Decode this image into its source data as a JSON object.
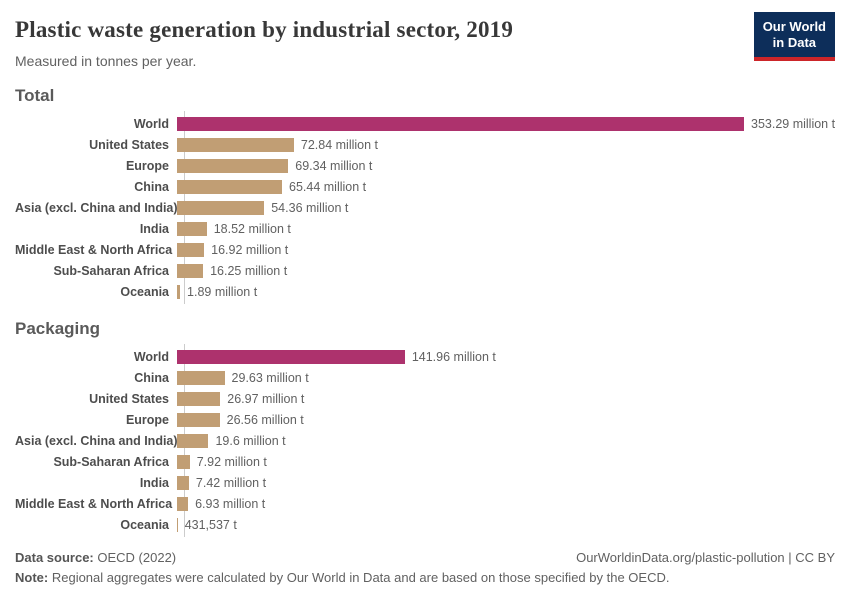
{
  "header": {
    "title": "Plastic waste generation by industrial sector, 2019",
    "subtitle": "Measured in tonnes per year."
  },
  "logo": {
    "line1": "Our World",
    "line2": "in Data",
    "background": "#0D2E5A",
    "underline": "#CC2529"
  },
  "colors": {
    "world_bar": "#AD326D",
    "region_bar": "#C19E74",
    "axis_line": "#CCCCCC"
  },
  "chart_data": [
    {
      "type": "bar",
      "orientation": "horizontal",
      "section_title": "Total",
      "unit": "tonnes per year",
      "xlim": [
        0,
        353.29
      ],
      "grid": false,
      "legend": "none",
      "categories": [
        "World",
        "United States",
        "Europe",
        "China",
        "Asia (excl. China and India)",
        "India",
        "Middle East & North Africa",
        "Sub-Saharan Africa",
        "Oceania"
      ],
      "values": [
        353.29,
        72.84,
        69.34,
        65.44,
        54.36,
        18.52,
        16.92,
        16.25,
        1.89
      ],
      "value_labels": [
        "353.29 million t",
        "72.84 million t",
        "69.34 million t",
        "65.44 million t",
        "54.36 million t",
        "18.52 million t",
        "16.92 million t",
        "16.25 million t",
        "1.89 million t"
      ],
      "bar_colors": [
        "#AD326D",
        "#C19E74",
        "#C19E74",
        "#C19E74",
        "#C19E74",
        "#C19E74",
        "#C19E74",
        "#C19E74",
        "#C19E74"
      ]
    },
    {
      "type": "bar",
      "orientation": "horizontal",
      "section_title": "Packaging",
      "unit": "tonnes per year",
      "xlim": [
        0,
        353.29
      ],
      "grid": false,
      "legend": "none",
      "categories": [
        "World",
        "China",
        "United States",
        "Europe",
        "Asia (excl. China and India)",
        "Sub-Saharan Africa",
        "India",
        "Middle East & North Africa",
        "Oceania"
      ],
      "values": [
        141.96,
        29.63,
        26.97,
        26.56,
        19.6,
        7.92,
        7.42,
        6.93,
        0.431537
      ],
      "value_labels": [
        "141.96 million t",
        "29.63 million t",
        "26.97 million t",
        "26.56 million t",
        "19.6 million t",
        "7.92 million t",
        "7.42 million t",
        "6.93 million t",
        "431,537 t"
      ],
      "bar_colors": [
        "#AD326D",
        "#C19E74",
        "#C19E74",
        "#C19E74",
        "#C19E74",
        "#C19E74",
        "#C19E74",
        "#C19E74",
        "#C19E74"
      ]
    }
  ],
  "footer": {
    "source_label": "Data source:",
    "source_value": "OECD (2022)",
    "credit": "OurWorldinData.org/plastic-pollution | CC BY",
    "note_label": "Note:",
    "note_text": "Regional aggregates were calculated by Our World in Data and are based on those specified by the OECD."
  }
}
